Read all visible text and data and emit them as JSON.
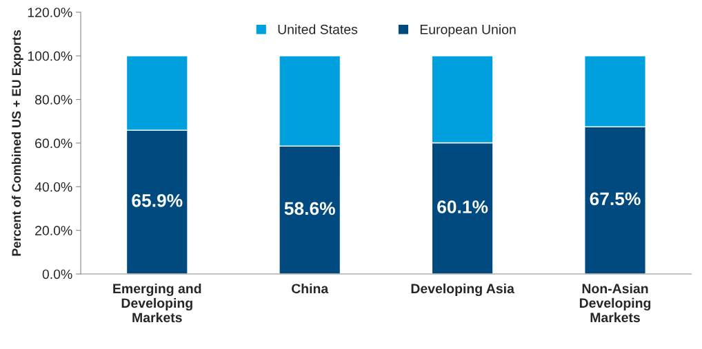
{
  "chart_data": {
    "type": "bar",
    "stacked": true,
    "ylabel": "Percent of Combined US + EU Exports",
    "categories": [
      "Emerging and\nDeveloping\nMarkets",
      "China",
      "Developing Asia",
      "Non-Asian\nDeveloping\nMarkets"
    ],
    "series": [
      {
        "name": "European Union",
        "color": "#004a80",
        "values": [
          65.9,
          58.6,
          60.1,
          67.5
        ],
        "value_labels": [
          "65.9%",
          "58.6%",
          "60.1%",
          "67.5%"
        ]
      },
      {
        "name": "United States",
        "color": "#00a0df",
        "values": [
          34.1,
          41.4,
          39.9,
          32.5
        ]
      }
    ],
    "ylim": [
      0,
      120
    ],
    "yticks": [
      {
        "value": 0,
        "label": "0.0%"
      },
      {
        "value": 20,
        "label": "20.0%"
      },
      {
        "value": 40,
        "label": "40.0%"
      },
      {
        "value": 60,
        "label": "60.0%"
      },
      {
        "value": 80,
        "label": "80.0%"
      },
      {
        "value": 100,
        "label": "100.0%"
      },
      {
        "value": 120,
        "label": "120.0%"
      }
    ],
    "grid": false,
    "legend": "top"
  }
}
